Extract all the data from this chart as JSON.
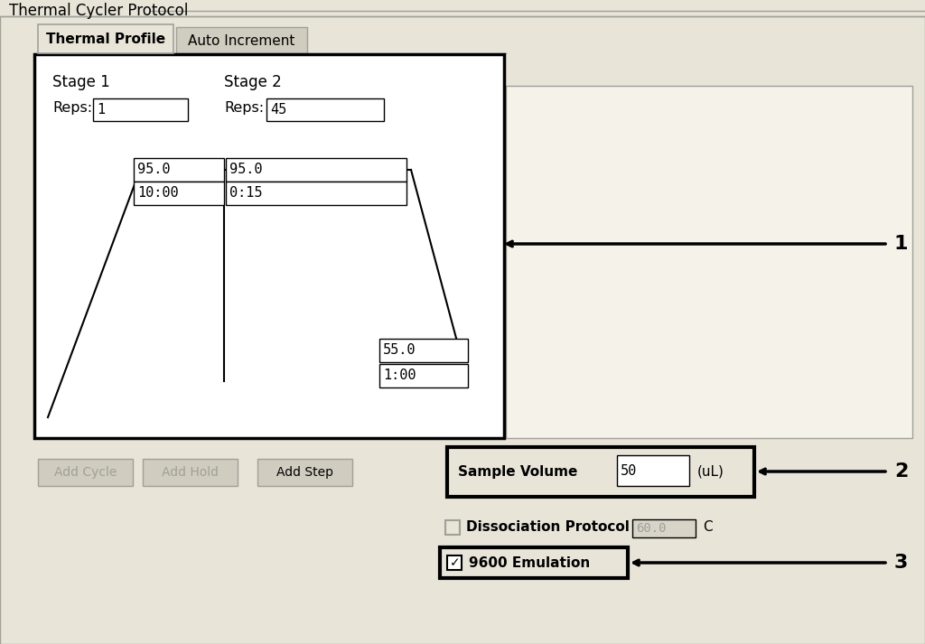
{
  "bg_color": "#e8e4d8",
  "white": "#ffffff",
  "panel_bg": "#e8e4d8",
  "gray_btn": "#d0ccbf",
  "dark_gray": "#a0a09a",
  "light_field": "#d8d4c8",
  "black": "#000000",
  "title": "Thermal Cycler Protocol",
  "tab1": "Thermal Profile",
  "tab2": "Auto Increment",
  "stage1_label": "Stage 1",
  "stage2_label": "Stage 2",
  "reps1_label": "Reps:",
  "reps1_val": "1",
  "reps2_label": "Reps:",
  "reps2_val": "45",
  "temp1": "95.0",
  "time1": "10:00",
  "temp2": "95.0",
  "time2": "0:15",
  "temp3": "55.0",
  "time3": "1:00",
  "btn1": "Add Cycle",
  "btn2": "Add Hold",
  "btn3": "Add Step",
  "sv_label": "Sample Volume",
  "sv_val": "50",
  "sv_unit": "(uL)",
  "dissoc_label": "Dissociation Protocol",
  "dissoc_val": "60.0",
  "dissoc_unit": "C",
  "emul_label": "9600 Emulation",
  "annot1": "1",
  "annot2": "2",
  "annot3": "3",
  "right_panel_bg": "#f5f2ea"
}
